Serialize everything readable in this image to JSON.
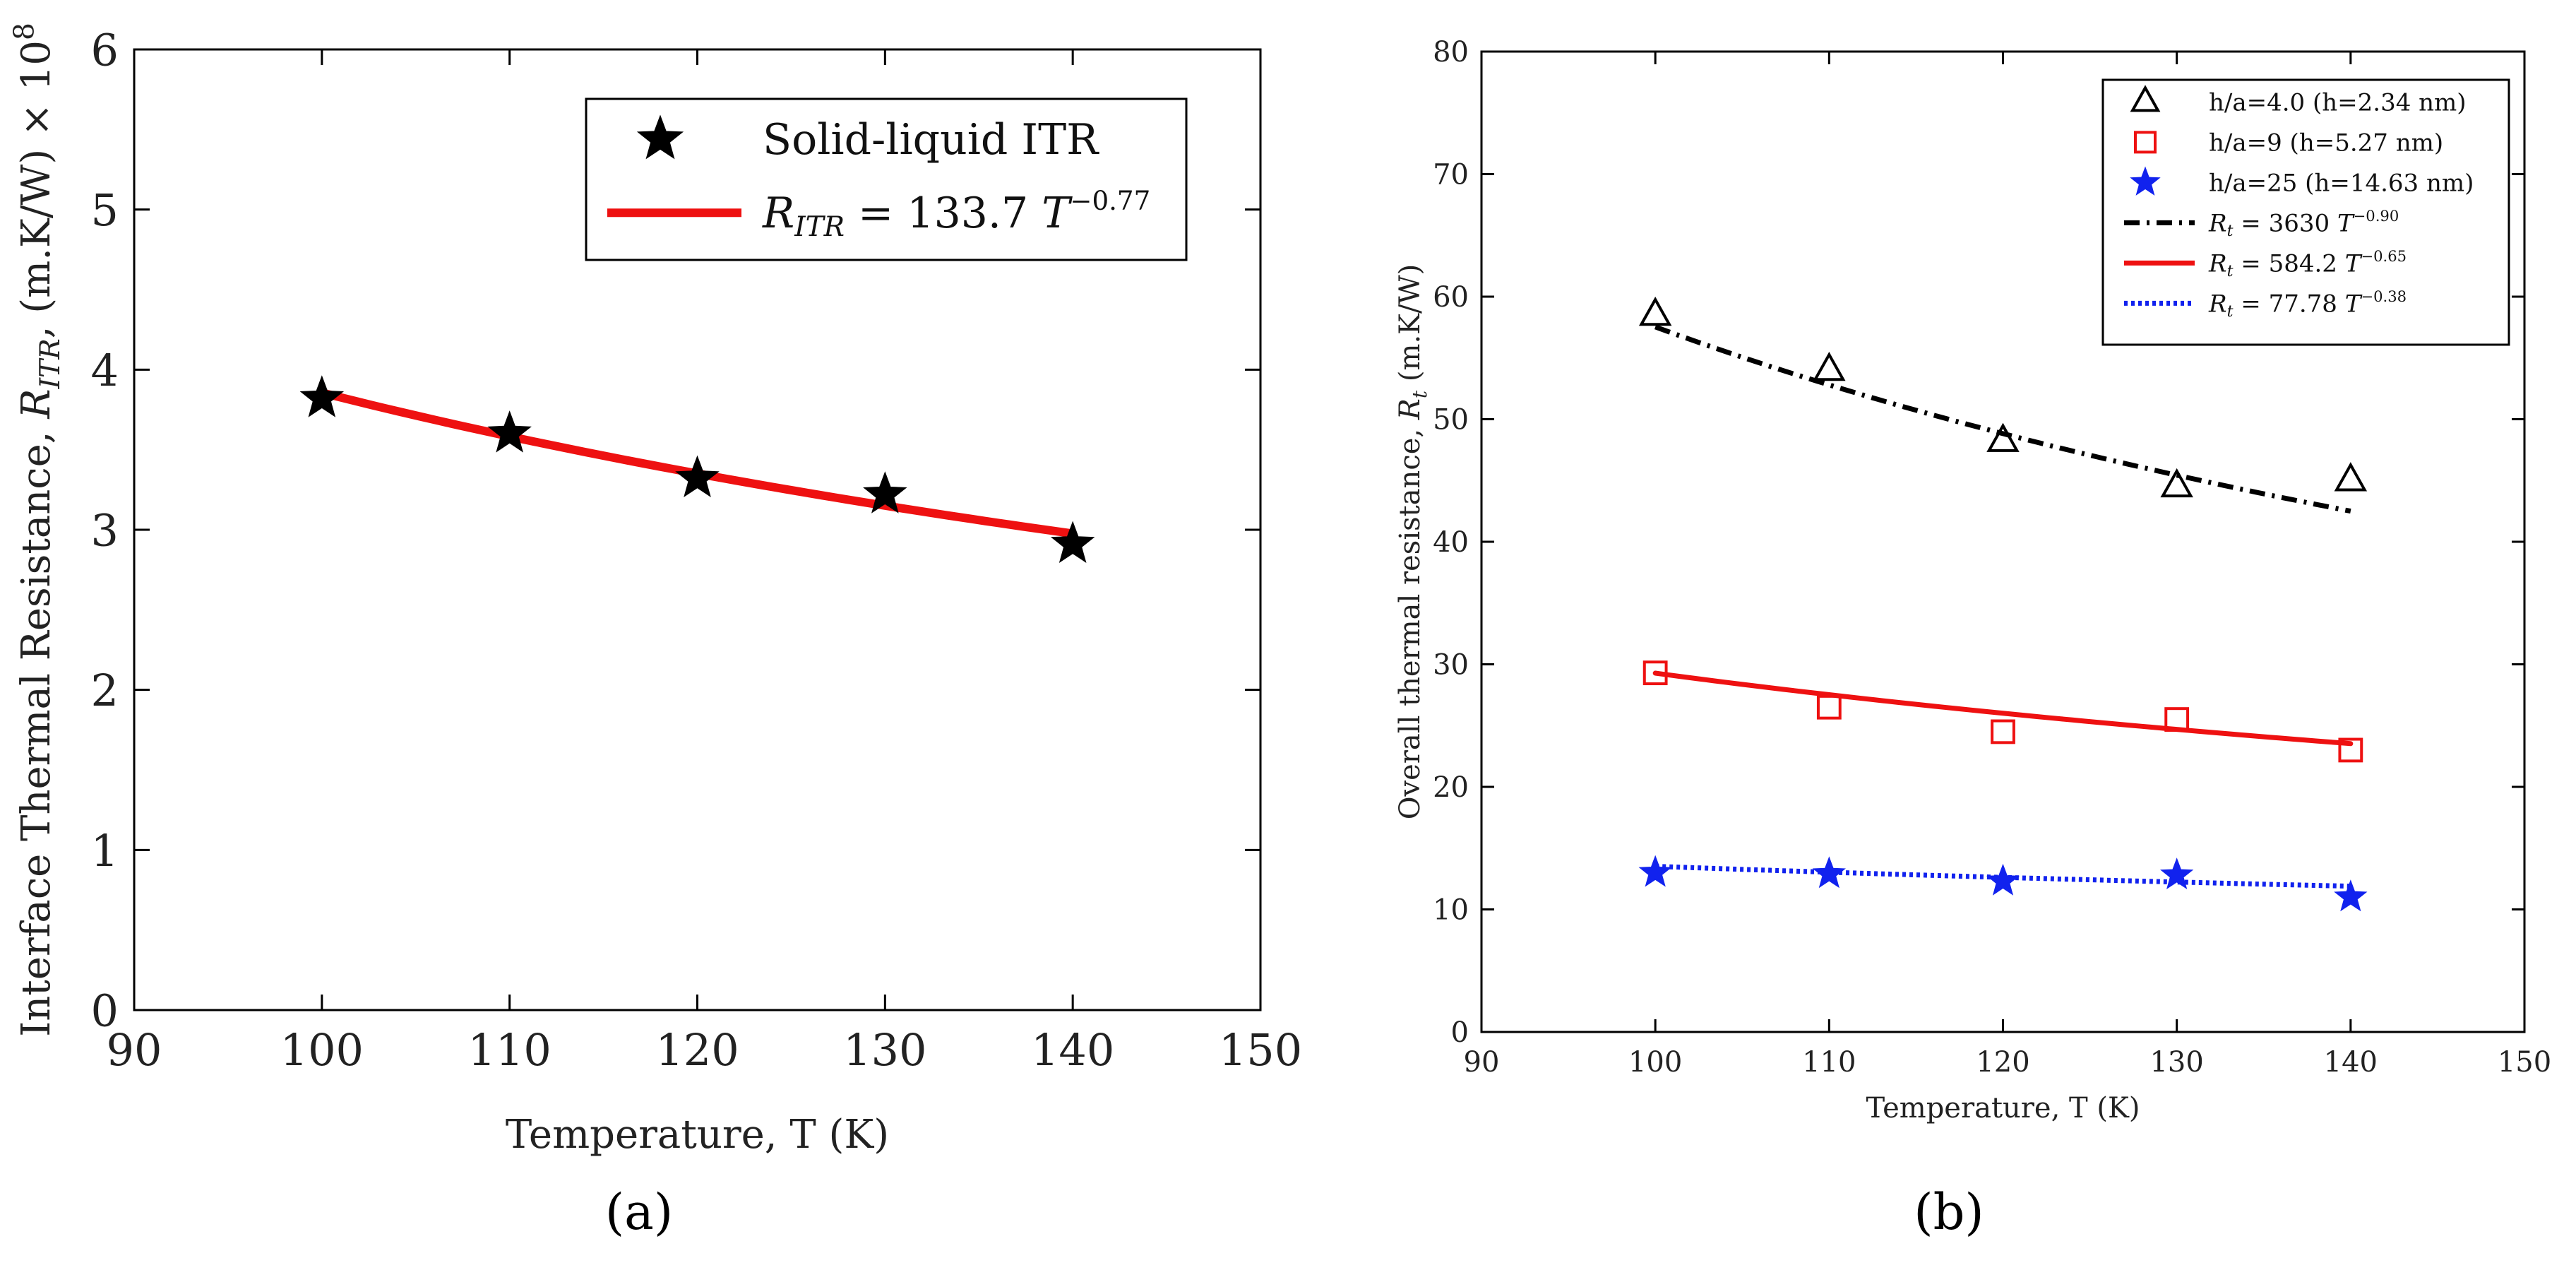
{
  "colors": {
    "black": "#000000",
    "red": "#ee1111",
    "blue": "#1122ee",
    "axis": "#000000"
  },
  "chart_data": [
    {
      "panel": "a",
      "type": "scatter",
      "caption": "(a)",
      "title": "",
      "xlabel": "Temperature, T (K)",
      "ylabel": "Interface Thermal Resistance, R_ITR, (m.K/W) × 10^8",
      "ylabel_parts": {
        "text": "Interface Thermal Resistance,  ",
        "var": "R",
        "sub": "ITR",
        "units": ",  (m.K/W) × 10",
        "exp": "8"
      },
      "xlim": [
        90,
        150
      ],
      "ylim": [
        0,
        6
      ],
      "xticks": [
        90,
        100,
        110,
        120,
        130,
        140,
        150
      ],
      "yticks": [
        0,
        1,
        2,
        3,
        4,
        5,
        6
      ],
      "legend_position": "top-right",
      "series": [
        {
          "name": "Solid-liquid ITR",
          "kind": "points",
          "marker": "star-filled",
          "color": "#000000",
          "x": [
            100,
            110,
            120,
            130,
            140
          ],
          "y": [
            3.82,
            3.6,
            3.32,
            3.22,
            2.91
          ]
        },
        {
          "name": "R_ITR = 133.7 T^-0.77",
          "legend_parts": {
            "var": "R",
            "sub": "ITR",
            "eq": " = 133.7 ",
            "tvar": "T",
            "exp": "−0.77"
          },
          "kind": "fit",
          "coef": 133.7,
          "exponent": -0.77,
          "color": "#ee1111",
          "dash": "solid",
          "x_range": [
            100,
            140
          ]
        }
      ]
    },
    {
      "panel": "b",
      "type": "scatter",
      "caption": "(b)",
      "title": "",
      "xlabel": "Temperature, T (K)",
      "ylabel": "Overall thermal resistance, R_t (m.K/W)",
      "ylabel_parts": {
        "text": "Overall thermal resistance, ",
        "var": "R",
        "sub": "t",
        "units": " (m.K/W)"
      },
      "xlim": [
        90,
        150
      ],
      "ylim": [
        0,
        80
      ],
      "xticks": [
        90,
        100,
        110,
        120,
        130,
        140,
        150
      ],
      "yticks": [
        0,
        10,
        20,
        30,
        40,
        50,
        60,
        70,
        80
      ],
      "legend_position": "top-right",
      "series": [
        {
          "name": "h/a=4.0 (h=2.34 nm)",
          "kind": "points",
          "marker": "triangle-open",
          "color": "#000000",
          "x": [
            100,
            110,
            120,
            130,
            140
          ],
          "y": [
            58.5,
            54.0,
            48.2,
            44.5,
            45.0
          ]
        },
        {
          "name": "h/a=9 (h=5.27 nm)",
          "kind": "points",
          "marker": "square-open",
          "color": "#ee1111",
          "x": [
            100,
            110,
            120,
            130,
            140
          ],
          "y": [
            29.3,
            26.5,
            24.5,
            25.5,
            23.0
          ]
        },
        {
          "name": "h/a=25 (h=14.63 nm)",
          "kind": "points",
          "marker": "star-filled",
          "color": "#1122ee",
          "x": [
            100,
            110,
            120,
            130,
            140
          ],
          "y": [
            13.0,
            12.9,
            12.3,
            12.8,
            11.0
          ]
        },
        {
          "name": "R_t = 3630 T^-0.90",
          "legend_parts": {
            "var": "R",
            "sub": "t",
            "eq": " = 3630 ",
            "tvar": "T",
            "exp": "−0.90"
          },
          "kind": "fit",
          "coef": 3630,
          "exponent": -0.9,
          "color": "#000000",
          "dash": "dashdot",
          "x_range": [
            100,
            140
          ]
        },
        {
          "name": "R_t = 584.2 T^-0.65",
          "legend_parts": {
            "var": "R",
            "sub": "t",
            "eq": " = 584.2 ",
            "tvar": "T",
            "exp": "−0.65"
          },
          "kind": "fit",
          "coef": 584.2,
          "exponent": -0.65,
          "color": "#ee1111",
          "dash": "solid",
          "x_range": [
            100,
            140
          ]
        },
        {
          "name": "R_t = 77.78 T^-0.38",
          "legend_parts": {
            "var": "R",
            "sub": "t",
            "eq": " = 77.78 ",
            "tvar": "T",
            "exp": "−0.38"
          },
          "kind": "fit",
          "coef": 77.78,
          "exponent": -0.38,
          "color": "#1122ee",
          "dash": "dotted",
          "x_range": [
            100,
            140
          ]
        }
      ]
    }
  ]
}
